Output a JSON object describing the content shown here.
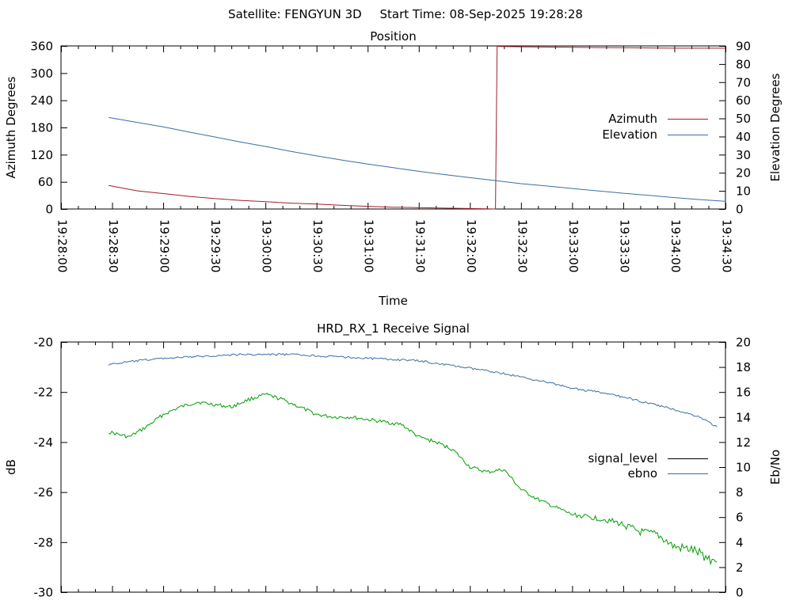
{
  "header": {
    "satellite": "Satellite: FENGYUN 3D",
    "start_time": "Start Time: 08-Sep-2025 19:28:28"
  },
  "colors": {
    "azimuth": "#a0202a",
    "elevation": "#3a6ea5",
    "signal_level": "#00a000",
    "ebno": "#3a6ea5",
    "axes": "#000000"
  },
  "chart_data": [
    {
      "type": "line",
      "title": "Position",
      "xlabel": "Time",
      "ylabel": "Azimuth Degrees",
      "y2label": "Elevation Degrees",
      "xlim": [
        "19:28:00",
        "19:34:30"
      ],
      "ylim": [
        0,
        360
      ],
      "y2lim": [
        0,
        90
      ],
      "xticks": [
        "19:28:00",
        "19:28:30",
        "19:29:00",
        "19:29:30",
        "19:30:00",
        "19:30:30",
        "19:31:00",
        "19:31:30",
        "19:32:00",
        "19:32:30",
        "19:33:00",
        "19:33:30",
        "19:34:00",
        "19:34:30"
      ],
      "yticks": [
        "0",
        "60",
        "120",
        "180",
        "240",
        "300",
        "360"
      ],
      "y2ticks": [
        "0",
        "10",
        "20",
        "30",
        "40",
        "50",
        "60",
        "70",
        "80",
        "90"
      ],
      "legend_position": "right",
      "grid": false,
      "series": [
        {
          "name": "Azimuth",
          "axis": "y",
          "x": [
            "19:28:28",
            "19:28:45",
            "19:29:00",
            "19:29:15",
            "19:29:30",
            "19:29:45",
            "19:30:00",
            "19:30:15",
            "19:30:30",
            "19:30:45",
            "19:31:00",
            "19:31:15",
            "19:31:30",
            "19:31:45",
            "19:32:00",
            "19:32:10",
            "19:32:15",
            "19:32:16",
            "19:32:17",
            "19:32:30",
            "19:33:00",
            "19:33:30",
            "19:34:00",
            "19:34:30"
          ],
          "values": [
            52,
            40,
            34,
            28,
            23,
            19,
            16,
            13,
            11,
            8,
            6,
            4,
            3,
            2,
            1,
            0.3,
            0,
            359,
            359,
            358,
            357,
            356,
            355,
            355
          ]
        },
        {
          "name": "Elevation",
          "axis": "y2",
          "x": [
            "19:28:28",
            "19:28:45",
            "19:29:00",
            "19:29:15",
            "19:29:30",
            "19:29:45",
            "19:30:00",
            "19:30:15",
            "19:30:30",
            "19:30:45",
            "19:31:00",
            "19:31:15",
            "19:31:30",
            "19:31:45",
            "19:32:00",
            "19:32:15",
            "19:32:30",
            "19:32:45",
            "19:33:00",
            "19:33:15",
            "19:33:30",
            "19:33:45",
            "19:34:00",
            "19:34:15",
            "19:34:30"
          ],
          "values": [
            50.5,
            47.7,
            45.3,
            42.5,
            39.8,
            37,
            34.5,
            31.8,
            29.3,
            27,
            24.8,
            22.8,
            20.8,
            19,
            17.3,
            15.7,
            14,
            12.7,
            11.3,
            10,
            8.7,
            7.5,
            6.3,
            5.2,
            4.3
          ]
        }
      ]
    },
    {
      "type": "line",
      "title": "HRD_RX_1 Receive Signal",
      "xlabel": "",
      "ylabel": "dB",
      "y2label": "Eb/No",
      "ylim": [
        -30,
        -20
      ],
      "y2lim": [
        0,
        20
      ],
      "yticks": [
        "-20",
        "-22",
        "-24",
        "-26",
        "-28",
        "-30"
      ],
      "y2ticks": [
        "0",
        "2",
        "4",
        "6",
        "8",
        "10",
        "12",
        "14",
        "16",
        "18",
        "20"
      ],
      "legend_position": "right",
      "grid": false,
      "series": [
        {
          "name": "signal_level",
          "axis": "y",
          "x": [
            "19:28:28",
            "19:28:40",
            "19:28:50",
            "19:29:00",
            "19:29:10",
            "19:29:20",
            "19:29:30",
            "19:29:40",
            "19:29:50",
            "19:30:00",
            "19:30:10",
            "19:30:20",
            "19:30:30",
            "19:30:40",
            "19:30:50",
            "19:31:00",
            "19:31:10",
            "19:31:20",
            "19:31:30",
            "19:31:40",
            "19:31:50",
            "19:32:00",
            "19:32:10",
            "19:32:20",
            "19:32:30",
            "19:32:40",
            "19:32:50",
            "19:33:00",
            "19:33:10",
            "19:33:20",
            "19:33:30",
            "19:33:40",
            "19:33:50",
            "19:34:00",
            "19:34:10",
            "19:34:25"
          ],
          "values": [
            -23.6,
            -23.8,
            -23.4,
            -22.9,
            -22.6,
            -22.4,
            -22.5,
            -22.6,
            -22.3,
            -22.1,
            -22.3,
            -22.6,
            -22.9,
            -23.0,
            -23.0,
            -23.1,
            -23.2,
            -23.3,
            -23.8,
            -24.0,
            -24.3,
            -25.0,
            -25.2,
            -25.1,
            -25.9,
            -26.3,
            -26.6,
            -26.9,
            -27.0,
            -27.1,
            -27.3,
            -27.6,
            -27.7,
            -28.2,
            -28.3,
            -28.8
          ]
        },
        {
          "name": "ebno",
          "axis": "y2",
          "x": [
            "19:28:28",
            "19:28:45",
            "19:29:00",
            "19:29:15",
            "19:29:30",
            "19:29:45",
            "19:30:00",
            "19:30:15",
            "19:30:30",
            "19:30:45",
            "19:31:00",
            "19:31:15",
            "19:31:30",
            "19:31:45",
            "19:32:00",
            "19:32:15",
            "19:32:30",
            "19:32:45",
            "19:33:00",
            "19:33:15",
            "19:33:30",
            "19:33:45",
            "19:34:00",
            "19:34:15",
            "19:34:25"
          ],
          "values": [
            18.2,
            18.5,
            18.7,
            18.8,
            18.9,
            19.0,
            19.0,
            19.0,
            18.9,
            18.8,
            18.7,
            18.6,
            18.5,
            18.2,
            17.9,
            17.6,
            17.2,
            16.8,
            16.3,
            16.0,
            15.6,
            15.1,
            14.6,
            14.0,
            13.2
          ]
        }
      ]
    }
  ]
}
